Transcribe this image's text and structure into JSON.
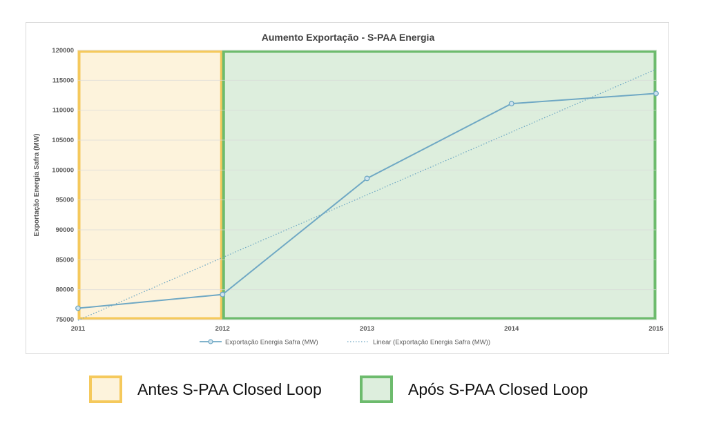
{
  "chart_data": {
    "type": "line",
    "title": "Aumento Exportação - S-PAA Energia",
    "ylabel": "Exportação Energia Safra (MW)",
    "xlabel": "",
    "x": [
      2011,
      2012,
      2013,
      2014,
      2015
    ],
    "x_tick_labels": [
      "2011",
      "2012",
      "2013",
      "2014",
      "2015"
    ],
    "xlim": [
      2011,
      2015
    ],
    "ylim": [
      75000,
      120000
    ],
    "y_ticks": [
      75000,
      80000,
      85000,
      90000,
      95000,
      100000,
      105000,
      110000,
      115000,
      120000
    ],
    "y_tick_labels": [
      "75000",
      "80000",
      "85000",
      "90000",
      "95000",
      "100000",
      "105000",
      "110000",
      "115000",
      "120000"
    ],
    "grid": true,
    "series": [
      {
        "name": "Exportação Energia Safra (MW)",
        "style": "solid-with-markers",
        "color": "#6fa8c4",
        "values": [
          76900,
          79200,
          98600,
          111100,
          112800
        ]
      },
      {
        "name": "Linear (Exportação Energia Safra (MW))",
        "style": "dotted-trendline",
        "color": "#6fa8c4",
        "values": [
          74880,
          85370,
          95860,
          106350,
          116840
        ]
      }
    ],
    "legend_placement": "bottom",
    "shaded_regions": [
      {
        "label": "Antes S-PAA Closed Loop",
        "x_range": [
          2011,
          2012
        ],
        "fill": "#fdf3dc",
        "border": "#f5c95c"
      },
      {
        "label": "Após S-PAA Closed Loop",
        "x_range": [
          2012,
          2015
        ],
        "fill": "#ddeedd",
        "border": "#6dbb6d"
      }
    ]
  },
  "colors": {
    "line": "#6fa8c4",
    "grid": "#d9d9d9",
    "axis_text": "#595959",
    "title_text": "#404040"
  },
  "legend_boxes": {
    "antes": "Antes S-PAA Closed Loop",
    "apos": "Após S-PAA Closed Loop"
  }
}
